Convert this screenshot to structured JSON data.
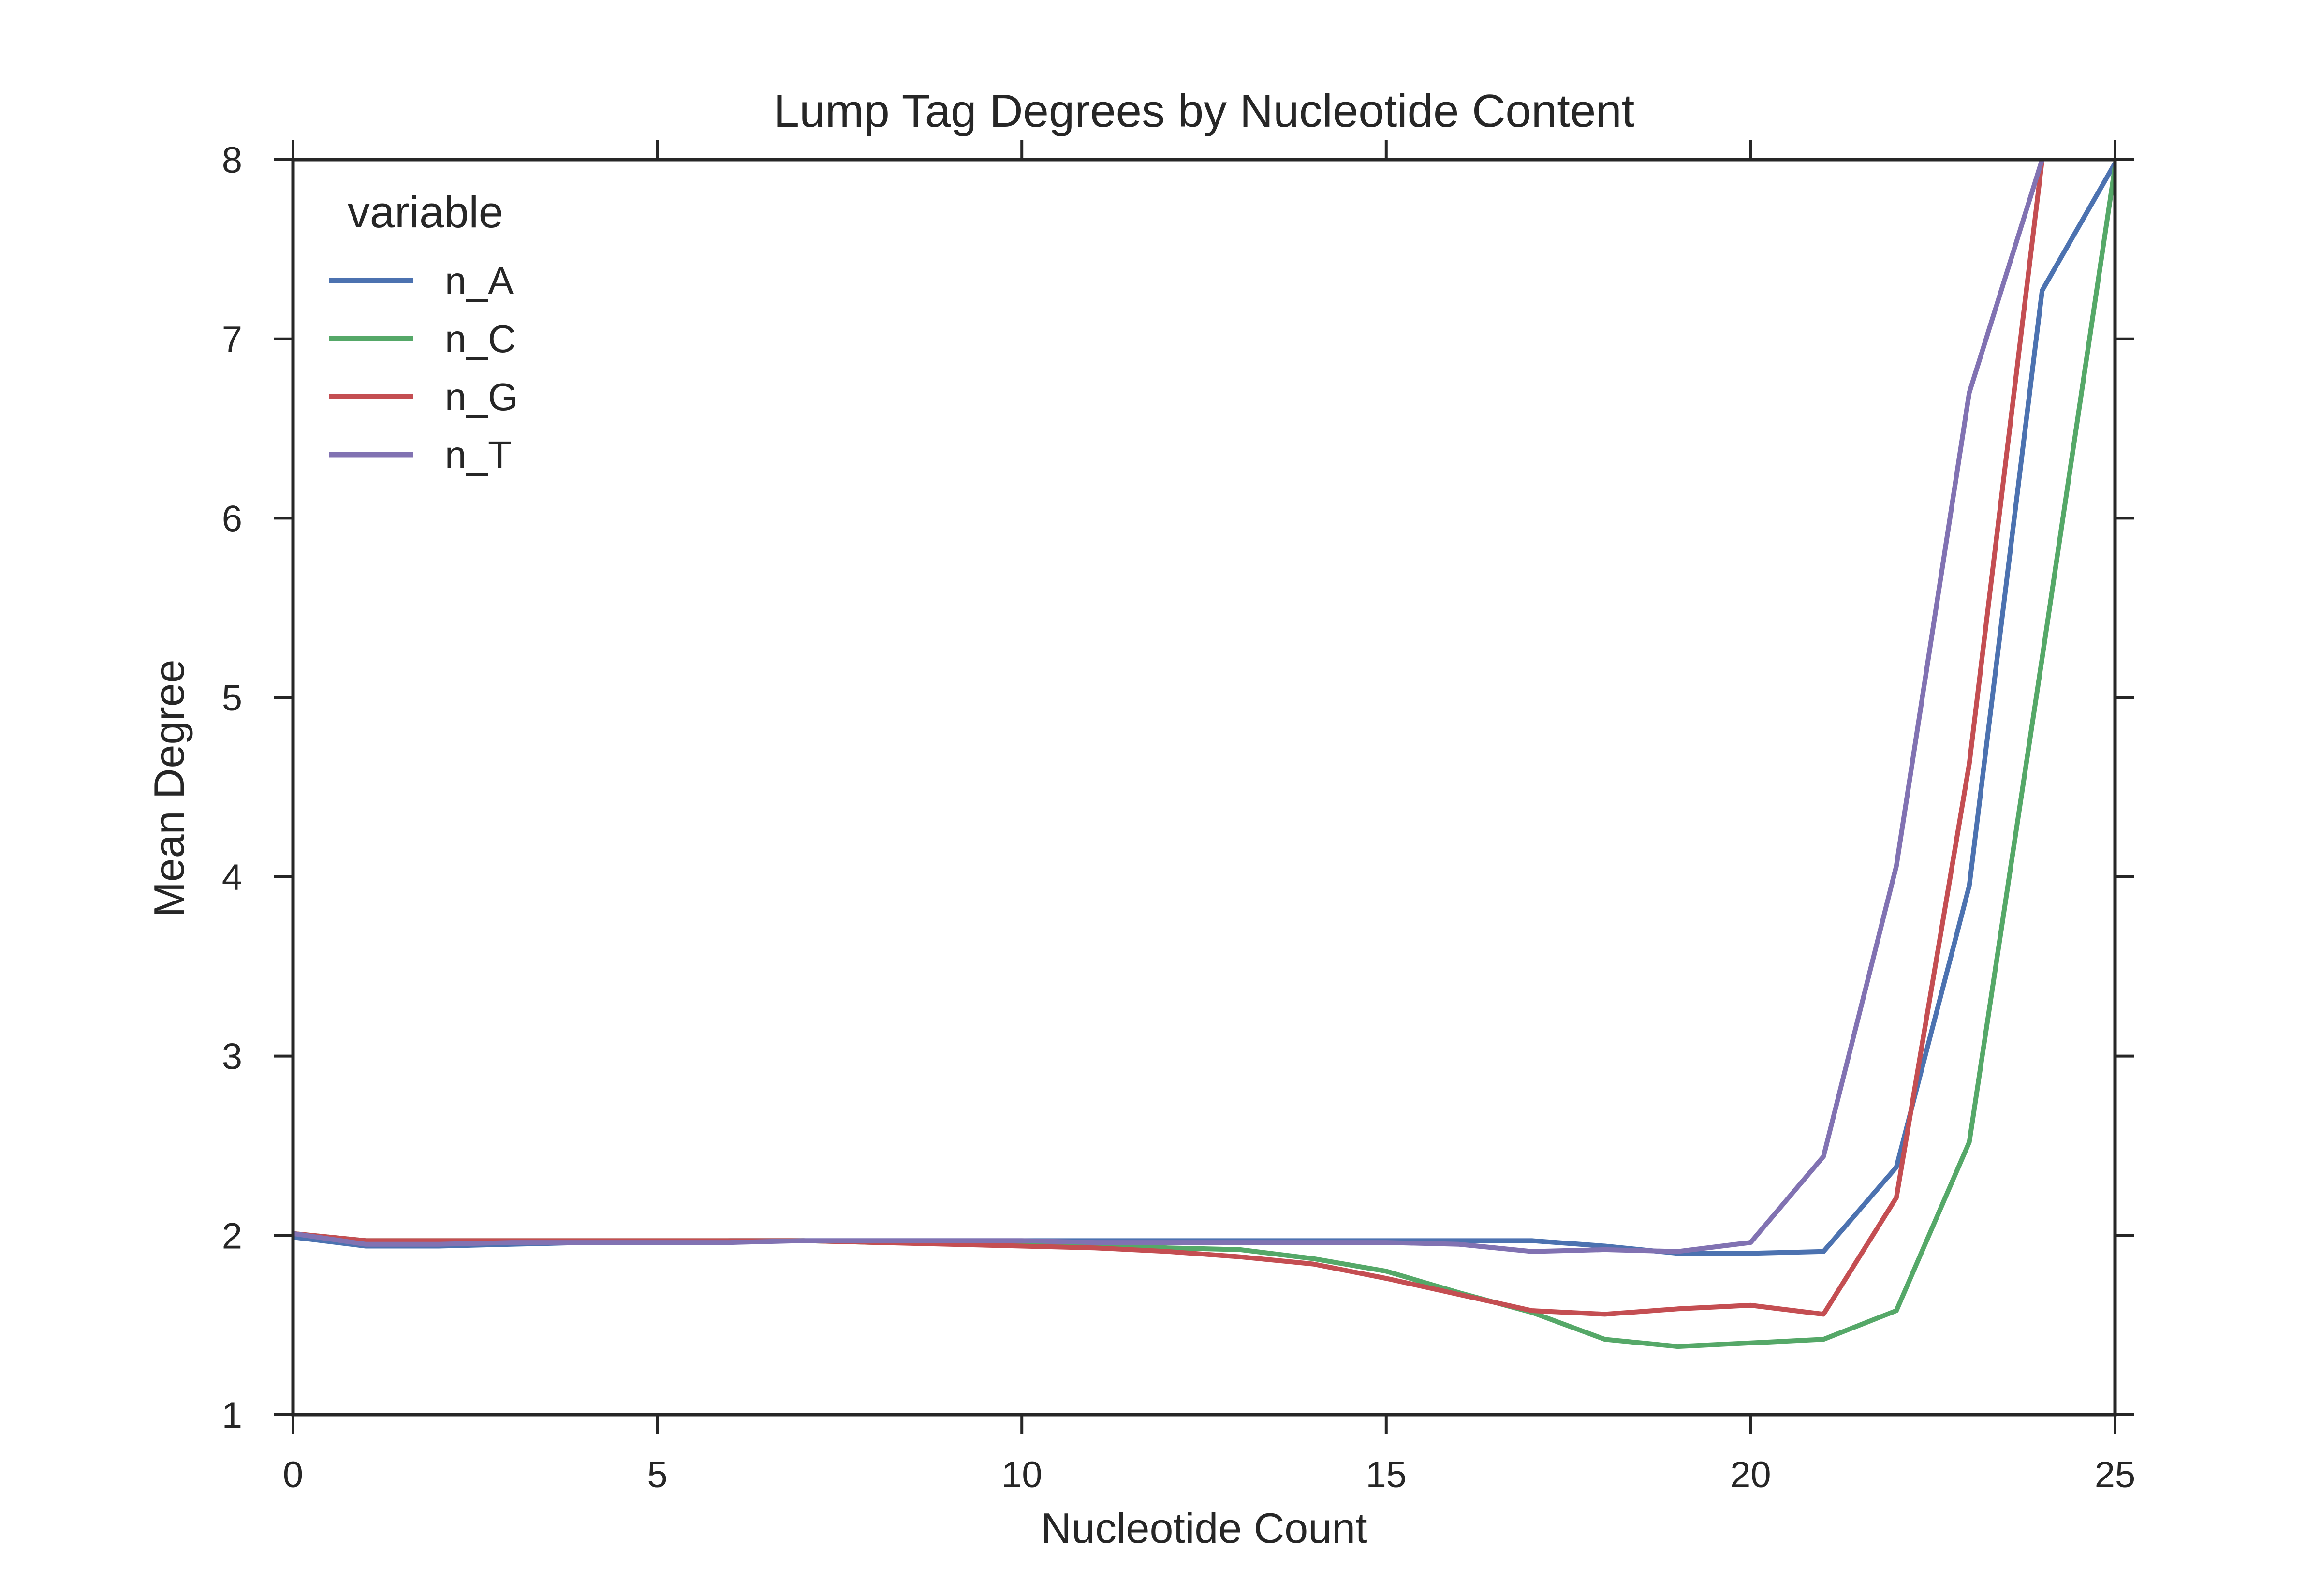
{
  "chart_data": {
    "type": "line",
    "title": "Lump Tag Degrees by Nucleotide Content",
    "xlabel": "Nucleotide Count",
    "ylabel": "Mean Degree",
    "xlim": [
      0,
      25
    ],
    "ylim": [
      1,
      8
    ],
    "xticks": [
      0,
      5,
      10,
      15,
      20,
      25
    ],
    "yticks": [
      1,
      2,
      3,
      4,
      5,
      6,
      7,
      8
    ],
    "grid": false,
    "legend": {
      "title": "variable",
      "position": "top-left"
    },
    "x": [
      0,
      1,
      2,
      3,
      4,
      5,
      6,
      7,
      8,
      9,
      10,
      11,
      12,
      13,
      14,
      15,
      16,
      17,
      18,
      19,
      20,
      21,
      22,
      23,
      24,
      25
    ],
    "series": [
      {
        "name": "n_A",
        "color": "#4c72b0",
        "values": [
          1.99,
          1.94,
          1.94,
          1.95,
          1.96,
          1.96,
          1.97,
          1.97,
          1.97,
          1.97,
          1.97,
          1.97,
          1.97,
          1.97,
          1.97,
          1.97,
          1.97,
          1.97,
          1.94,
          1.9,
          1.9,
          1.91,
          2.38,
          3.95,
          7.27,
          7.98
        ]
      },
      {
        "name": "n_C",
        "color": "#55a868",
        "values": [
          2.01,
          1.97,
          1.97,
          1.97,
          1.97,
          1.97,
          1.97,
          1.97,
          1.96,
          1.96,
          1.95,
          1.94,
          1.93,
          1.92,
          1.87,
          1.8,
          1.68,
          1.57,
          1.42,
          1.38,
          1.4,
          1.42,
          1.58,
          2.52,
          5.22,
          7.96
        ]
      },
      {
        "name": "n_G",
        "color": "#c44e52",
        "values": [
          2.01,
          1.97,
          1.97,
          1.97,
          1.97,
          1.97,
          1.97,
          1.97,
          1.96,
          1.95,
          1.94,
          1.93,
          1.91,
          1.88,
          1.84,
          1.76,
          1.67,
          1.58,
          1.56,
          1.59,
          1.61,
          1.56,
          2.21,
          4.63,
          8.0,
          null
        ]
      },
      {
        "name": "n_T",
        "color": "#8172b2",
        "values": [
          2.01,
          1.95,
          1.95,
          1.96,
          1.96,
          1.96,
          1.96,
          1.97,
          1.97,
          1.97,
          1.97,
          1.96,
          1.96,
          1.96,
          1.96,
          1.96,
          1.95,
          1.91,
          1.92,
          1.91,
          1.96,
          2.44,
          4.06,
          6.7,
          8.0,
          null
        ]
      }
    ]
  }
}
